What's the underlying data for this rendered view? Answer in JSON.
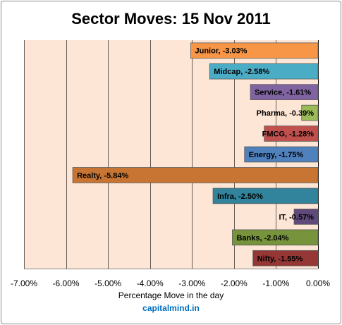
{
  "title": "Sector Moves: 15 Nov 2011",
  "watermark": "capitalmind.in",
  "colors": {
    "plot_background": "#fde6d6",
    "gridline": "#000000",
    "watermark": "#0070c0"
  },
  "chart_data": {
    "type": "bar",
    "orientation": "horizontal",
    "title": "Sector Moves: 15 Nov 2011",
    "xlabel": "Percentage Move in the day",
    "ylabel": "",
    "xlim": [
      -7.0,
      0.0
    ],
    "x_ticks": [
      -7,
      -6,
      -5,
      -4,
      -3,
      -2,
      -1,
      0
    ],
    "x_tick_labels": [
      "-7.00%",
      "-6.00%",
      "-5.00%",
      "-4.00%",
      "-3.00%",
      "-2.00%",
      "-1.00%",
      "0.00%"
    ],
    "grid": "vertical major gridlines",
    "legend": "none",
    "categories": [
      "Junior",
      "Midcap",
      "Service",
      "Pharma",
      "FMCG",
      "Energy",
      "Realty",
      "Infra",
      "IT",
      "Banks",
      "Nifty"
    ],
    "values": [
      -3.03,
      -2.58,
      -1.61,
      -0.39,
      -1.28,
      -1.75,
      -5.84,
      -2.5,
      -0.57,
      -2.04,
      -1.55
    ],
    "data_labels": [
      "Junior, -3.03%",
      "Midcap, -2.58%",
      "Service, -1.61%",
      "Pharma, -0.39%",
      "FMCG, -1.28%",
      "Energy, -1.75%",
      "Realty, -5.84%",
      "Infra, -2.50%",
      "IT, -0.57%",
      "Banks, -2.04%",
      "Nifty, -1.55%"
    ],
    "bar_colors": [
      "#f79646",
      "#4bacc6",
      "#8064a2",
      "#9bbb59",
      "#c0504d",
      "#4f81bd",
      "#c87533",
      "#31849b",
      "#604a7b",
      "#77933c",
      "#953735"
    ]
  }
}
